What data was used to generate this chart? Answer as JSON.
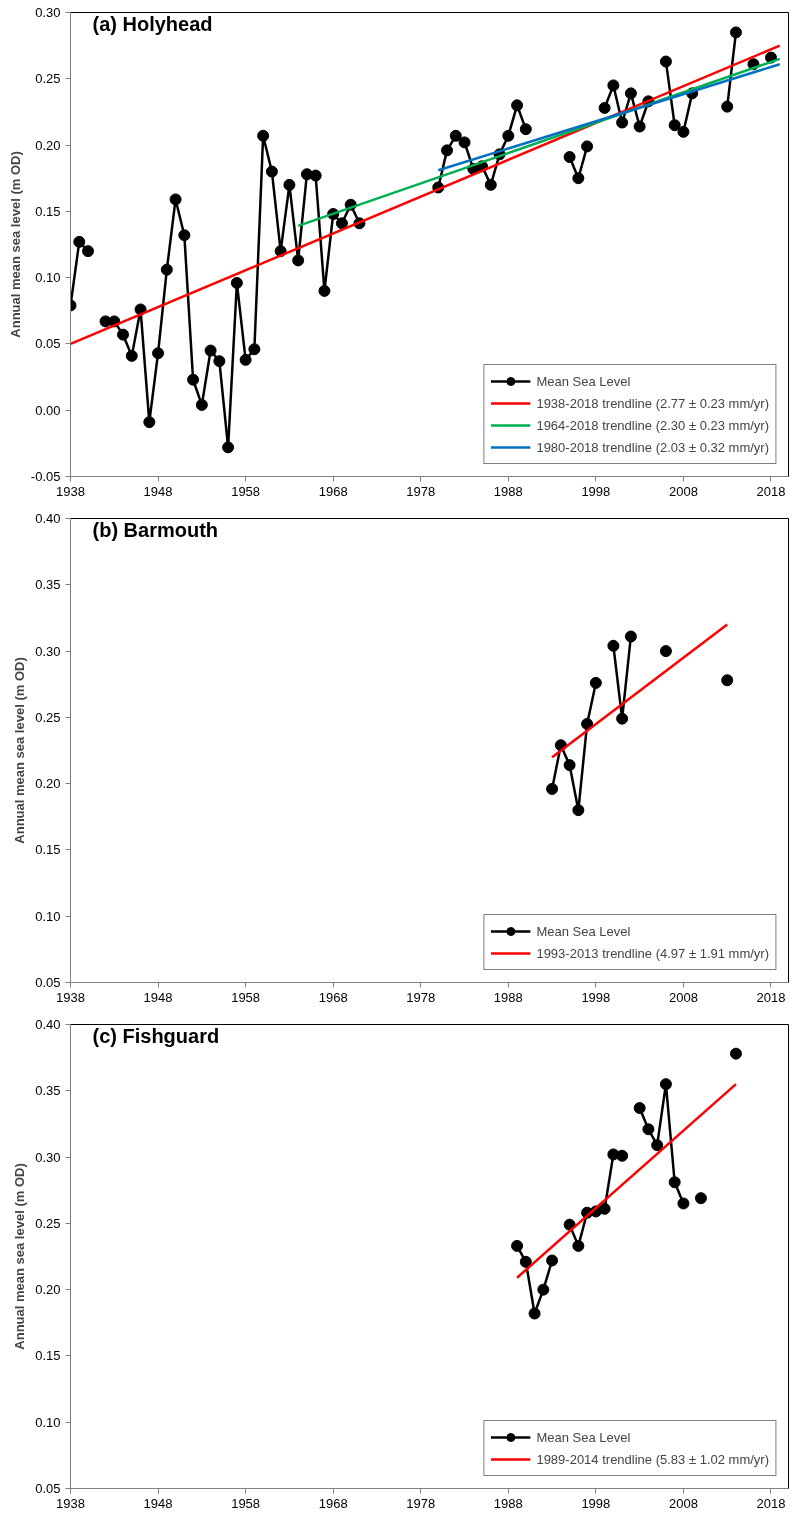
{
  "chart_data": [
    {
      "type": "line",
      "title": "(a) Holyhead",
      "ylabel": "Annual mean sea level (m OD)",
      "xlim": [
        1938,
        2020
      ],
      "ylim": [
        -0.05,
        0.3
      ],
      "xticks": [
        1938,
        1948,
        1958,
        1968,
        1978,
        1988,
        1998,
        2008,
        2018
      ],
      "yticks": [
        {
          "value": -0.05,
          "label": "-0.05"
        },
        {
          "value": 0,
          "label": "0.00"
        },
        {
          "value": 0.05,
          "label": "0.05"
        },
        {
          "value": 0.1,
          "label": "0.10"
        },
        {
          "value": 0.15,
          "label": "0.15"
        },
        {
          "value": 0.2,
          "label": "0.20"
        },
        {
          "value": 0.25,
          "label": "0.25"
        },
        {
          "value": 0.3,
          "label": "0.30"
        }
      ],
      "legend": "bottom right",
      "series": [
        {
          "name": "Mean Sea Level",
          "color": "#000000",
          "marker": "circle",
          "x": [
            1938,
            1939,
            1940,
            1941,
            1942,
            1943,
            1944,
            1945,
            1946,
            1947,
            1948,
            1949,
            1950,
            1951,
            1952,
            1953,
            1954,
            1955,
            1956,
            1957,
            1958,
            1959,
            1960,
            1961,
            1962,
            1963,
            1964,
            1965,
            1966,
            1967,
            1968,
            1969,
            1970,
            1971,
            1972,
            1980,
            1981,
            1982,
            1983,
            1984,
            1985,
            1986,
            1987,
            1988,
            1989,
            1990,
            1991,
            1995,
            1996,
            1997,
            1998,
            1999,
            2000,
            2001,
            2002,
            2003,
            2004,
            2005,
            2006,
            2007,
            2008,
            2009,
            2010,
            2013,
            2014,
            2015,
            2016,
            2017,
            2018
          ],
          "values": [
            0.079,
            0.127,
            0.12,
            null,
            0.067,
            0.067,
            0.057,
            0.041,
            0.076,
            -0.009,
            0.043,
            0.106,
            0.159,
            0.132,
            0.023,
            0.004,
            0.045,
            0.037,
            -0.028,
            0.096,
            0.038,
            0.046,
            0.207,
            0.18,
            0.12,
            0.17,
            0.113,
            0.178,
            0.177,
            0.09,
            0.148,
            0.141,
            0.155,
            0.141,
            null,
            0.168,
            0.196,
            0.207,
            0.202,
            0.182,
            0.184,
            0.17,
            0.193,
            0.207,
            0.23,
            0.212,
            null,
            0.191,
            0.175,
            0.199,
            null,
            0.228,
            0.245,
            0.217,
            0.239,
            0.214,
            0.233,
            null,
            0.263,
            0.215,
            0.21,
            0.239,
            null,
            0.229,
            0.285,
            null,
            0.261,
            null,
            0.266
          ]
        },
        {
          "name": "1938-2018 trendline (2.77 ± 0.23 mm/yr)",
          "color": "#ff0000",
          "x": [
            1938,
            2019
          ],
          "values": [
            0.05,
            0.275
          ]
        },
        {
          "name": "1964-2018 trendline (2.30 ± 0.23 mm/yr)",
          "color": "#00b050",
          "x": [
            1964,
            2019
          ],
          "values": [
            0.139,
            0.265
          ]
        },
        {
          "name": "1980-2018 trendline (2.03 ± 0.32 mm/yr)",
          "color": "#0070c0",
          "x": [
            1980,
            2019
          ],
          "values": [
            0.181,
            0.261
          ]
        }
      ]
    },
    {
      "type": "line",
      "title": "(b) Barmouth",
      "ylabel": "Annual mean sea level (m OD)",
      "xlim": [
        1938,
        2020
      ],
      "ylim": [
        0.05,
        0.4
      ],
      "xticks": [
        1938,
        1948,
        1958,
        1968,
        1978,
        1988,
        1998,
        2008,
        2018
      ],
      "yticks": [
        {
          "value": 0.05,
          "label": "0.05"
        },
        {
          "value": 0.1,
          "label": "0.10"
        },
        {
          "value": 0.15,
          "label": "0.15"
        },
        {
          "value": 0.2,
          "label": "0.20"
        },
        {
          "value": 0.25,
          "label": "0.25"
        },
        {
          "value": 0.3,
          "label": "0.30"
        },
        {
          "value": 0.35,
          "label": "0.35"
        },
        {
          "value": 0.4,
          "label": "0.40"
        }
      ],
      "legend": "bottom right",
      "series": [
        {
          "name": "Mean Sea Level",
          "color": "#000000",
          "marker": "circle",
          "x": [
            1993,
            1994,
            1995,
            1996,
            1997,
            1998,
            1999,
            2000,
            2001,
            2002,
            2003,
            2006,
            2007,
            2013
          ],
          "values": [
            0.196,
            0.229,
            0.214,
            0.18,
            0.245,
            0.276,
            null,
            0.304,
            0.249,
            0.311,
            null,
            0.3,
            null,
            0.278
          ]
        },
        {
          "name": "1993-2013 trendline (4.97 ± 1.91 mm/yr)",
          "color": "#ff0000",
          "x": [
            1993,
            2013
          ],
          "values": [
            0.22,
            0.32
          ]
        }
      ]
    },
    {
      "type": "line",
      "title": "(c) Fishguard",
      "ylabel": "Annual mean sea level (m OD)",
      "xlim": [
        1938,
        2020
      ],
      "ylim": [
        0.05,
        0.4
      ],
      "xticks": [
        1938,
        1948,
        1958,
        1968,
        1978,
        1988,
        1998,
        2008,
        2018
      ],
      "yticks": [
        {
          "value": 0.05,
          "label": "0.05"
        },
        {
          "value": 0.1,
          "label": "0.10"
        },
        {
          "value": 0.15,
          "label": "0.15"
        },
        {
          "value": 0.2,
          "label": "0.20"
        },
        {
          "value": 0.25,
          "label": "0.25"
        },
        {
          "value": 0.3,
          "label": "0.30"
        },
        {
          "value": 0.35,
          "label": "0.35"
        },
        {
          "value": 0.4,
          "label": "0.40"
        }
      ],
      "legend": "bottom right",
      "series": [
        {
          "name": "Mean Sea Level",
          "color": "#000000",
          "marker": "circle",
          "x": [
            1989,
            1990,
            1991,
            1992,
            1993,
            1994,
            1995,
            1996,
            1997,
            1998,
            1999,
            2000,
            2001,
            2002,
            2003,
            2004,
            2005,
            2006,
            2007,
            2008,
            2009,
            2010,
            2011,
            2014
          ],
          "values": [
            0.233,
            0.221,
            0.182,
            0.2,
            0.222,
            null,
            0.249,
            0.233,
            0.258,
            0.259,
            0.261,
            0.302,
            0.301,
            null,
            0.337,
            0.321,
            0.309,
            0.355,
            0.281,
            0.265,
            null,
            0.269,
            null,
            0.378
          ]
        },
        {
          "name": "1989-2014 trendline (5.83 ± 1.02 mm/yr)",
          "color": "#ff0000",
          "x": [
            1989,
            2014
          ],
          "values": [
            0.209,
            0.355
          ]
        }
      ]
    }
  ]
}
